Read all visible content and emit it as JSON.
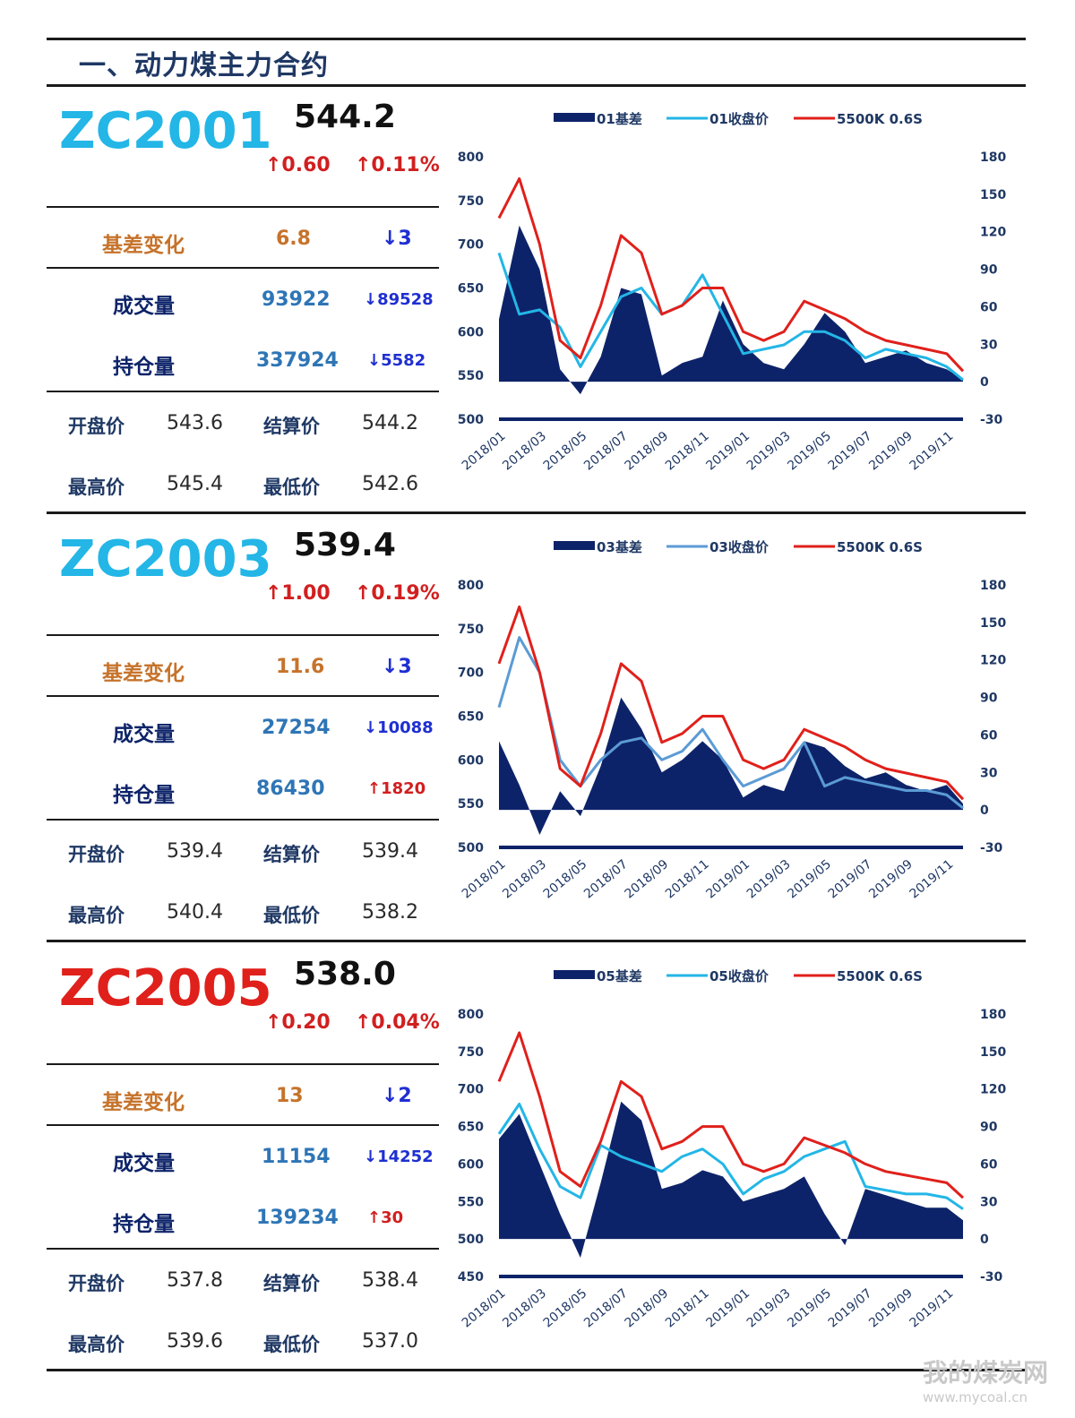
{
  "section_title": "一、动力煤主力合约",
  "colors": {
    "navy": "#0d2369",
    "red": "#e0201b",
    "cyan": "#23b6e6",
    "steel": "#5b9bd5",
    "orange": "#c6732b",
    "blue_num": "#2e75b6",
    "down_blue": "#1f2fd1"
  },
  "contracts": [
    {
      "code": "ZC2001",
      "code_color": "#23b6e6",
      "price": "544.2",
      "chg_abs": "↑0.60",
      "chg_pct": "↑0.11%",
      "basis": {
        "label": "基差变化",
        "value": "6.8",
        "change": "↓3"
      },
      "volume": {
        "label": "成交量",
        "value": "93922",
        "change": "↓89528",
        "change_color": "#1f2fd1"
      },
      "oi": {
        "label": "持仓量",
        "value": "337924",
        "change": "↓5582",
        "change_color": "#1f2fd1"
      },
      "open": {
        "label": "开盘价",
        "value": "543.6"
      },
      "settle": {
        "label": "结算价",
        "value": "544.2"
      },
      "high": {
        "label": "最高价",
        "value": "545.4"
      },
      "low": {
        "label": "最低价",
        "value": "542.6"
      }
    },
    {
      "code": "ZC2003",
      "code_color": "#23b6e6",
      "price": "539.4",
      "chg_abs": "↑1.00",
      "chg_pct": "↑0.19%",
      "basis": {
        "label": "基差变化",
        "value": "11.6",
        "change": "↓3"
      },
      "volume": {
        "label": "成交量",
        "value": "27254",
        "change": "↓10088",
        "change_color": "#1f2fd1"
      },
      "oi": {
        "label": "持仓量",
        "value": "86430",
        "change": "↑1820",
        "change_color": "#d11f1f"
      },
      "open": {
        "label": "开盘价",
        "value": "539.4"
      },
      "settle": {
        "label": "结算价",
        "value": "539.4"
      },
      "high": {
        "label": "最高价",
        "value": "540.4"
      },
      "low": {
        "label": "最低价",
        "value": "538.2"
      }
    },
    {
      "code": "ZC2005",
      "code_color": "#e0201b",
      "price": "538.0",
      "chg_abs": "↑0.20",
      "chg_pct": "↑0.04%",
      "basis": {
        "label": "基差变化",
        "value": "13",
        "change": "↓2"
      },
      "volume": {
        "label": "成交量",
        "value": "11154",
        "change": "↓14252",
        "change_color": "#1f2fd1"
      },
      "oi": {
        "label": "持仓量",
        "value": "139234",
        "change": "↑30",
        "change_color": "#d11f1f"
      },
      "open": {
        "label": "开盘价",
        "value": "537.8"
      },
      "settle": {
        "label": "结算价",
        "value": "538.4"
      },
      "high": {
        "label": "最高价",
        "value": "539.6"
      },
      "low": {
        "label": "最低价",
        "value": "537.0"
      }
    }
  ],
  "chart_data": [
    {
      "type": "line",
      "legend": [
        "01基差",
        "01收盘价",
        "5500K 0.6S"
      ],
      "legend_position": "top",
      "x_ticks": [
        "2018/01",
        "2018/03",
        "2018/05",
        "2018/07",
        "2018/09",
        "2018/11",
        "2019/01",
        "2019/03",
        "2019/05",
        "2019/07",
        "2019/09",
        "2019/11"
      ],
      "y_left": {
        "ticks": [
          500,
          550,
          600,
          650,
          700,
          750,
          800
        ],
        "range": [
          500,
          800
        ]
      },
      "y_right": {
        "ticks": [
          -30,
          0,
          30,
          60,
          90,
          120,
          150,
          180
        ],
        "range": [
          -30,
          180
        ]
      },
      "series": [
        {
          "name": "01基差",
          "kind": "area",
          "axis": "right",
          "color": "#0d2369",
          "x": [
            0,
            0.5,
            1,
            1.5,
            2,
            2.5,
            3,
            3.5,
            4,
            4.5,
            5,
            5.5,
            6,
            6.5,
            7,
            7.5,
            8,
            8.5,
            9,
            9.5,
            10,
            10.5,
            11,
            11.4
          ],
          "values": [
            50,
            125,
            90,
            10,
            -10,
            20,
            75,
            70,
            5,
            15,
            20,
            65,
            30,
            15,
            10,
            30,
            55,
            40,
            15,
            20,
            25,
            15,
            10,
            2
          ]
        },
        {
          "name": "01收盘价",
          "kind": "line",
          "axis": "left",
          "color": "#23b6e6",
          "x": [
            0,
            0.5,
            1,
            1.5,
            2,
            2.5,
            3,
            3.5,
            4,
            4.5,
            5,
            5.5,
            6,
            6.5,
            7,
            7.5,
            8,
            8.5,
            9,
            9.5,
            10,
            10.5,
            11,
            11.4
          ],
          "values": [
            690,
            620,
            625,
            605,
            560,
            600,
            640,
            650,
            620,
            630,
            665,
            620,
            575,
            580,
            585,
            600,
            600,
            590,
            570,
            580,
            575,
            570,
            560,
            545
          ]
        },
        {
          "name": "5500K 0.6S",
          "kind": "line",
          "axis": "left",
          "color": "#e0201b",
          "x": [
            0,
            0.5,
            1,
            1.5,
            2,
            2.5,
            3,
            3.5,
            4,
            4.5,
            5,
            5.5,
            6,
            6.5,
            7,
            7.5,
            8,
            8.5,
            9,
            9.5,
            10,
            10.5,
            11,
            11.4
          ],
          "values": [
            730,
            775,
            700,
            590,
            570,
            630,
            710,
            690,
            620,
            630,
            650,
            650,
            600,
            590,
            600,
            635,
            625,
            615,
            600,
            590,
            585,
            580,
            575,
            555
          ]
        }
      ]
    },
    {
      "type": "line",
      "legend": [
        "03基差",
        "03收盘价",
        "5500K 0.6S"
      ],
      "legend_position": "top",
      "x_ticks": [
        "2018/01",
        "2018/03",
        "2018/05",
        "2018/07",
        "2018/09",
        "2018/11",
        "2019/01",
        "2019/03",
        "2019/05",
        "2019/07",
        "2019/09",
        "2019/11"
      ],
      "y_left": {
        "ticks": [
          500,
          550,
          600,
          650,
          700,
          750,
          800
        ],
        "range": [
          500,
          800
        ]
      },
      "y_right": {
        "ticks": [
          -30,
          0,
          30,
          60,
          90,
          120,
          150,
          180
        ],
        "range": [
          -30,
          180
        ]
      },
      "series": [
        {
          "name": "03基差",
          "kind": "area",
          "axis": "right",
          "color": "#0d2369",
          "x": [
            0,
            0.5,
            1,
            1.5,
            2,
            2.5,
            3,
            3.5,
            4,
            4.5,
            5,
            5.5,
            6,
            6.5,
            7,
            7.5,
            8,
            8.5,
            9,
            9.5,
            10,
            10.5,
            11,
            11.4
          ],
          "values": [
            55,
            20,
            -20,
            15,
            -5,
            35,
            90,
            65,
            30,
            40,
            55,
            40,
            10,
            20,
            15,
            55,
            50,
            35,
            25,
            30,
            20,
            15,
            20,
            5
          ]
        },
        {
          "name": "03收盘价",
          "kind": "line",
          "axis": "left",
          "color": "#5b9bd5",
          "x": [
            0,
            0.5,
            1,
            1.5,
            2,
            2.5,
            3,
            3.5,
            4,
            4.5,
            5,
            5.5,
            6,
            6.5,
            7,
            7.5,
            8,
            8.5,
            9,
            9.5,
            10,
            10.5,
            11,
            11.4
          ],
          "values": [
            660,
            740,
            700,
            600,
            570,
            600,
            620,
            625,
            600,
            610,
            635,
            600,
            570,
            580,
            590,
            620,
            570,
            580,
            575,
            570,
            565,
            565,
            560,
            545
          ]
        },
        {
          "name": "5500K 0.6S",
          "kind": "line",
          "axis": "left",
          "color": "#e0201b",
          "x": [
            0,
            0.5,
            1,
            1.5,
            2,
            2.5,
            3,
            3.5,
            4,
            4.5,
            5,
            5.5,
            6,
            6.5,
            7,
            7.5,
            8,
            8.5,
            9,
            9.5,
            10,
            10.5,
            11,
            11.4
          ],
          "values": [
            710,
            775,
            700,
            590,
            570,
            630,
            710,
            690,
            620,
            630,
            650,
            650,
            600,
            590,
            600,
            635,
            625,
            615,
            600,
            590,
            585,
            580,
            575,
            555
          ]
        }
      ]
    },
    {
      "type": "line",
      "legend": [
        "05基差",
        "05收盘价",
        "5500K 0.6S"
      ],
      "legend_position": "top",
      "x_ticks": [
        "2018/01",
        "2018/03",
        "2018/05",
        "2018/07",
        "2018/09",
        "2018/11",
        "2019/01",
        "2019/03",
        "2019/05",
        "2019/07",
        "2019/09",
        "2019/11"
      ],
      "y_left": {
        "ticks": [
          450,
          500,
          550,
          600,
          650,
          700,
          750,
          800
        ],
        "range": [
          450,
          800
        ]
      },
      "y_right": {
        "ticks": [
          -30,
          0,
          30,
          60,
          90,
          120,
          150,
          180
        ],
        "range": [
          -30,
          180
        ]
      },
      "series": [
        {
          "name": "05基差",
          "kind": "area",
          "axis": "right",
          "color": "#0d2369",
          "x": [
            0,
            0.5,
            1,
            1.5,
            2,
            2.5,
            3,
            3.5,
            4,
            4.5,
            5,
            5.5,
            6,
            6.5,
            7,
            7.5,
            8,
            8.5,
            9,
            9.5,
            10,
            10.5,
            11,
            11.4
          ],
          "values": [
            80,
            100,
            60,
            20,
            -15,
            45,
            110,
            95,
            40,
            45,
            55,
            50,
            30,
            35,
            40,
            50,
            20,
            -5,
            40,
            35,
            30,
            25,
            25,
            15
          ]
        },
        {
          "name": "05收盘价",
          "kind": "line",
          "axis": "left",
          "color": "#23b6e6",
          "x": [
            0,
            0.5,
            1,
            1.5,
            2,
            2.5,
            3,
            3.5,
            4,
            4.5,
            5,
            5.5,
            6,
            6.5,
            7,
            7.5,
            8,
            8.5,
            9,
            9.5,
            10,
            10.5,
            11,
            11.4
          ],
          "values": [
            640,
            680,
            620,
            570,
            555,
            625,
            610,
            600,
            590,
            610,
            620,
            600,
            560,
            580,
            590,
            610,
            620,
            630,
            570,
            565,
            560,
            560,
            555,
            540
          ]
        },
        {
          "name": "5500K 0.6S",
          "kind": "line",
          "axis": "left",
          "color": "#e0201b",
          "x": [
            0,
            0.5,
            1,
            1.5,
            2,
            2.5,
            3,
            3.5,
            4,
            4.5,
            5,
            5.5,
            6,
            6.5,
            7,
            7.5,
            8,
            8.5,
            9,
            9.5,
            10,
            10.5,
            11,
            11.4
          ],
          "values": [
            710,
            775,
            690,
            590,
            570,
            630,
            710,
            690,
            620,
            630,
            650,
            650,
            600,
            590,
            600,
            635,
            625,
            615,
            600,
            590,
            585,
            580,
            575,
            555
          ]
        }
      ]
    }
  ],
  "watermark": {
    "name": "我的煤炭网",
    "url": "www.mycoal.cn"
  }
}
